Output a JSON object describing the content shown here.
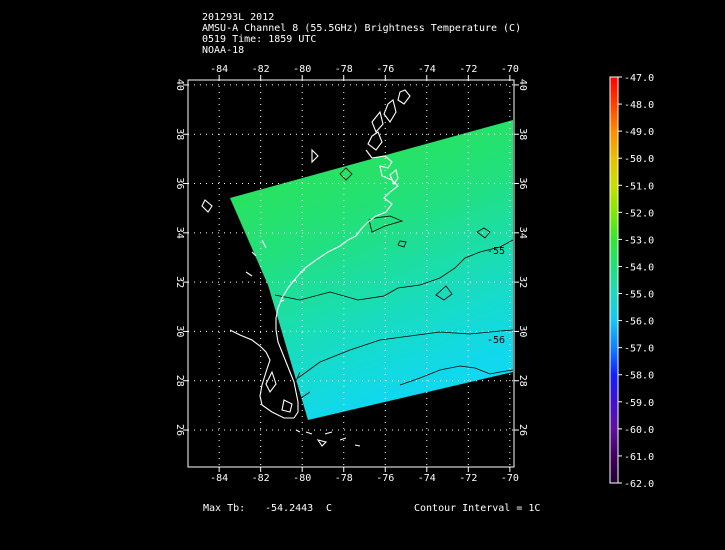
{
  "header": {
    "line1": "201293L 2012",
    "line2": "AMSU-A Channel 8 (55.5GHz) Brightness Temperature (C)",
    "line3": "0519 Time: 1859 UTC",
    "line4": "NOAA-18"
  },
  "map": {
    "lon_ticks_top": [
      "-84",
      "-82",
      "-80",
      "-78",
      "-76",
      "-74",
      "-72",
      "-70"
    ],
    "lon_ticks_bottom": [
      "-84",
      "-82",
      "-80",
      "-78",
      "-76",
      "-74",
      "-72",
      "-70"
    ],
    "lat_ticks_left": [
      "40",
      "38",
      "36",
      "34",
      "32",
      "30",
      "28",
      "26"
    ],
    "lat_ticks_right": [
      "40",
      "38",
      "36",
      "34",
      "32",
      "30",
      "28",
      "26"
    ],
    "contour_labels": [
      "-55",
      "-56"
    ],
    "lon_range": [
      -85.5,
      -69.8
    ],
    "lat_range": [
      24.5,
      40.2
    ],
    "colors": {
      "background": "#000000",
      "coast": "#ffffff",
      "contour": "#000000",
      "swath_high": "#2ee63a",
      "swath_low": "#12d8ee"
    }
  },
  "colorbar": {
    "labels": [
      "-47.0",
      "-48.0",
      "-49.0",
      "-50.0",
      "-51.0",
      "-52.0",
      "-53.0",
      "-54.0",
      "-55.0",
      "-56.0",
      "-57.0",
      "-58.0",
      "-59.0",
      "-60.0",
      "-61.0",
      "-62.0"
    ],
    "colors_top_to_bottom": [
      "#ff0000",
      "#ff4000",
      "#ff8c00",
      "#e8c000",
      "#c8e000",
      "#80e800",
      "#33e633",
      "#20e07a",
      "#20d8c0",
      "#14c8f0",
      "#1080ff",
      "#1020ff",
      "#4010d0",
      "#6010a0",
      "#400060",
      "#200030"
    ]
  },
  "footer": {
    "max_label": "Max Tb:",
    "max_value": "-54.2443",
    "max_unit": "C",
    "contour_interval": "Contour Interval = 1C"
  }
}
